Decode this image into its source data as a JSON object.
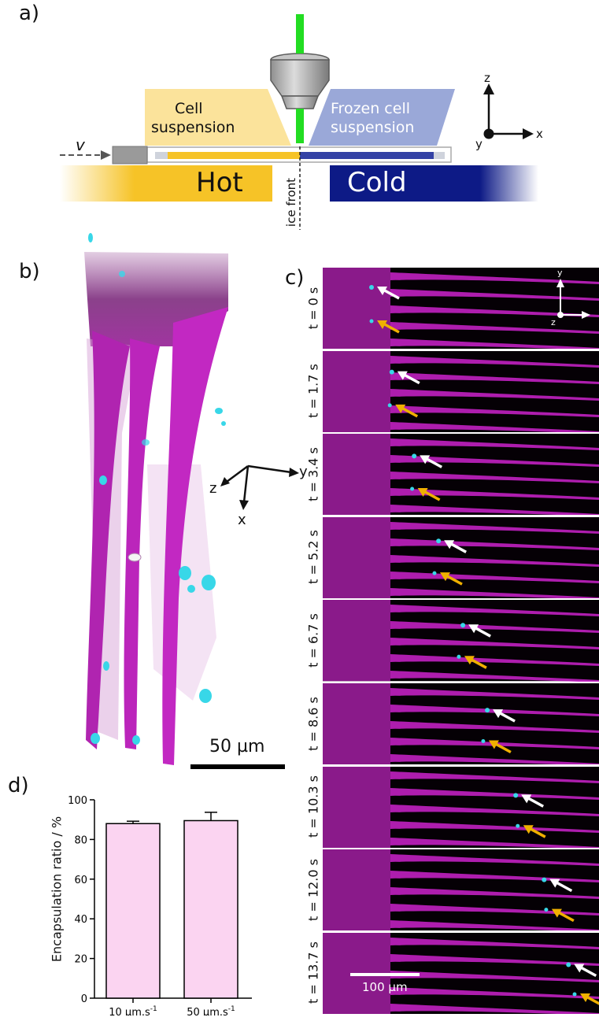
{
  "panel_a": {
    "letter": "a)",
    "velocity_label": "v",
    "cell_suspension": [
      "Cell",
      "suspension"
    ],
    "frozen_cell_suspension": [
      "Frozen cell",
      "suspension"
    ],
    "hot_label": "Hot",
    "cold_label": "Cold",
    "ice_front_label": "ice front",
    "axes": {
      "z": "z",
      "x": "x",
      "y": "y"
    }
  },
  "panel_b": {
    "letter": "b)",
    "axes": {
      "z": "z",
      "y": "y",
      "x": "x"
    },
    "scale_bar_label": "50 µm"
  },
  "panel_c": {
    "letter": "c)",
    "frames": [
      {
        "time": "t = 0 s",
        "white_arrow_progress": 0.0,
        "yellow_arrow_progress": 0.0
      },
      {
        "time": "t = 1.7 s",
        "white_arrow_progress": 0.1,
        "yellow_arrow_progress": 0.09
      },
      {
        "time": "t = 3.4 s",
        "white_arrow_progress": 0.21,
        "yellow_arrow_progress": 0.2
      },
      {
        "time": "t = 5.2 s",
        "white_arrow_progress": 0.33,
        "yellow_arrow_progress": 0.31
      },
      {
        "time": "t = 6.7 s",
        "white_arrow_progress": 0.45,
        "yellow_arrow_progress": 0.43
      },
      {
        "time": "t = 8.6 s",
        "white_arrow_progress": 0.57,
        "yellow_arrow_progress": 0.55
      },
      {
        "time": "t = 10.3 s",
        "white_arrow_progress": 0.71,
        "yellow_arrow_progress": 0.72
      },
      {
        "time": "t = 12.0 s",
        "white_arrow_progress": 0.85,
        "yellow_arrow_progress": 0.86
      },
      {
        "time": "t = 13.7 s",
        "white_arrow_progress": 0.97,
        "yellow_arrow_progress": 1.0
      }
    ],
    "axes": {
      "y": "y",
      "z": "z"
    },
    "scale_bar_label": "100 µm"
  },
  "panel_d": {
    "letter": "d)",
    "colors": {
      "bar_fill": "#fbd4f1",
      "bar_edge": "#000000"
    },
    "chart_data": {
      "type": "bar",
      "categories": [
        "10 µm.s-1",
        "50 µm.s-1"
      ],
      "category_parts": [
        {
          "num": "10",
          "unit": "µm.s",
          "exp": "-1"
        },
        {
          "num": "50",
          "unit": "µm.s",
          "exp": "-1"
        }
      ],
      "values": [
        88,
        89.5
      ],
      "errors": [
        1.2,
        4.2
      ],
      "ylabel": "Encapsulation ratio / %",
      "ylim": [
        0,
        100
      ],
      "yticks": [
        0,
        20,
        40,
        60,
        80,
        100
      ]
    }
  },
  "colors": {
    "hot": "#f6c327",
    "cold": "#0d1a86",
    "cell_suspension": "#fbe39b",
    "frozen_suspension": "#9aa8d8",
    "laser": "#22dd22",
    "magenta": "#cc22cc",
    "cyan": "#38d7e8",
    "arrow_white": "#ffffff",
    "arrow_yellow": "#f0b000"
  }
}
